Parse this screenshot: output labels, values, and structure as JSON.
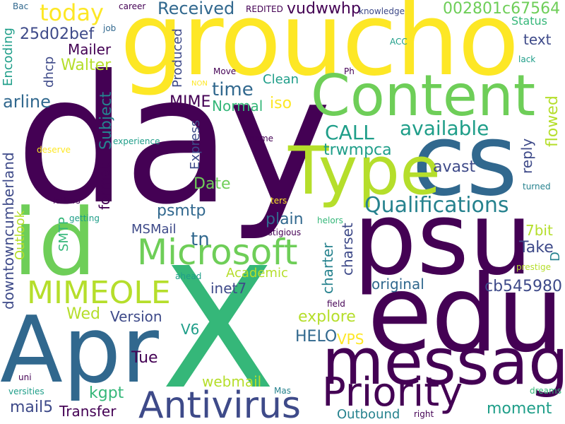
{
  "palette": {
    "background": "#ffffff",
    "dark_purple": "#440154",
    "indigo": "#3e4a89",
    "blue": "#31688e",
    "teal": "#26828e",
    "green_teal": "#1f9e89",
    "green": "#35b779",
    "light_green": "#6ece58",
    "lime": "#b5de2b",
    "yellow": "#fde725"
  },
  "words": [
    {
      "text": "day",
      "color": "#440154"
    },
    {
      "text": "groucho",
      "color": "#fde725"
    },
    {
      "text": "X",
      "color": "#35b779"
    },
    {
      "text": "edu",
      "color": "#440154"
    },
    {
      "text": "psu",
      "color": "#440154"
    },
    {
      "text": "Apr",
      "color": "#31688e"
    },
    {
      "text": "id",
      "color": "#6ece58"
    },
    {
      "text": "cs",
      "color": "#31688e"
    },
    {
      "text": "Content",
      "color": "#6ece58"
    },
    {
      "text": "Type",
      "color": "#b5de2b"
    },
    {
      "text": "message",
      "color": "#440154"
    },
    {
      "text": "Priority",
      "color": "#440154"
    },
    {
      "text": "Antivirus",
      "color": "#3e4a89"
    },
    {
      "text": "Microsoft",
      "color": "#6ece58"
    },
    {
      "text": "MIMEOLE",
      "color": "#b5de2b"
    },
    {
      "text": "Qualifications",
      "color": "#26828e"
    },
    {
      "text": "today",
      "color": "#fde725"
    },
    {
      "text": "Received",
      "color": "#31688e"
    },
    {
      "text": "vudwwhp",
      "color": "#440154"
    },
    {
      "text": "002801c67564",
      "color": "#6ece58"
    },
    {
      "text": "25d02bef",
      "color": "#3e4a89"
    },
    {
      "text": "Mailer",
      "color": "#440154"
    },
    {
      "text": "Walter",
      "color": "#b5de2b"
    },
    {
      "text": "time",
      "color": "#31688e"
    },
    {
      "text": "MIME",
      "color": "#440154"
    },
    {
      "text": "Normal",
      "color": "#35b779"
    },
    {
      "text": "iso",
      "color": "#fde725"
    },
    {
      "text": "CALL",
      "color": "#1f9e89"
    },
    {
      "text": "available",
      "color": "#1f9e89"
    },
    {
      "text": "trwmpca",
      "color": "#1f9e89"
    },
    {
      "text": "text",
      "color": "#3e4a89"
    },
    {
      "text": "avast",
      "color": "#3e4a89"
    },
    {
      "text": "arline",
      "color": "#31688e"
    },
    {
      "text": "Clean",
      "color": "#1f9e89"
    },
    {
      "text": "Date",
      "color": "#6ece58"
    },
    {
      "text": "psmtp",
      "color": "#31688e"
    },
    {
      "text": "plain",
      "color": "#31688e"
    },
    {
      "text": "MSMail",
      "color": "#3e4a89"
    },
    {
      "text": "tn",
      "color": "#31688e"
    },
    {
      "text": "Take",
      "color": "#3e4a89"
    },
    {
      "text": "7bit",
      "color": "#b5de2b"
    },
    {
      "text": "Academic",
      "color": "#b5de2b"
    },
    {
      "text": "inet7",
      "color": "#3e4a89"
    },
    {
      "text": "original",
      "color": "#31688e"
    },
    {
      "text": "cb545980",
      "color": "#3e4a89"
    },
    {
      "text": "Version",
      "color": "#3e4a89"
    },
    {
      "text": "explore",
      "color": "#b5de2b"
    },
    {
      "text": "Wed",
      "color": "#b5de2b"
    },
    {
      "text": "HELO",
      "color": "#31688e"
    },
    {
      "text": "VPS",
      "color": "#fde725"
    },
    {
      "text": "V6",
      "color": "#1f9e89"
    },
    {
      "text": "Tue",
      "color": "#440154"
    },
    {
      "text": "webmail",
      "color": "#b5de2b"
    },
    {
      "text": "kgpt",
      "color": "#35b779"
    },
    {
      "text": "mail5",
      "color": "#3e4a89"
    },
    {
      "text": "Transfer",
      "color": "#440154"
    },
    {
      "text": "Outbound",
      "color": "#26828e"
    },
    {
      "text": "moment",
      "color": "#1f9e89"
    },
    {
      "text": "Bac",
      "color": "#31688e"
    },
    {
      "text": "career",
      "color": "#440154"
    },
    {
      "text": "REDITED",
      "color": "#440154"
    },
    {
      "text": "knowledge",
      "color": "#3e4a89"
    },
    {
      "text": "Status",
      "color": "#35b779"
    },
    {
      "text": "job",
      "color": "#31688e"
    },
    {
      "text": "ACC",
      "color": "#1f9e89"
    },
    {
      "text": "lack",
      "color": "#1f9e89"
    },
    {
      "text": "Move",
      "color": "#440154"
    },
    {
      "text": "Ph",
      "color": "#440154"
    },
    {
      "text": "NON",
      "color": "#fde725"
    },
    {
      "text": "experience",
      "color": "#1f9e89"
    },
    {
      "text": "deserve",
      "color": "#fde725"
    },
    {
      "text": "name",
      "color": "#440154"
    },
    {
      "text": "letters",
      "color": "#440154"
    },
    {
      "text": "getting",
      "color": "#1f9e89"
    },
    {
      "text": "ters",
      "color": "#fde725"
    },
    {
      "text": "helors",
      "color": "#35b779"
    },
    {
      "text": "prestigious",
      "color": "#440154"
    },
    {
      "text": "ahead",
      "color": "#1f9e89"
    },
    {
      "text": "field",
      "color": "#440154"
    },
    {
      "text": "turned",
      "color": "#26828e"
    },
    {
      "text": "prestige",
      "color": "#b5de2b"
    },
    {
      "text": "uni",
      "color": "#440154"
    },
    {
      "text": "versities",
      "color": "#1f9e89"
    },
    {
      "text": "Mas",
      "color": "#26828e"
    },
    {
      "text": "right",
      "color": "#440154"
    },
    {
      "text": "dreams",
      "color": "#35b779"
    },
    {
      "text": "Encoding",
      "color": "#1f9e89"
    },
    {
      "text": "dhcp",
      "color": "#3e4a89"
    },
    {
      "text": "Produced",
      "color": "#3e4a89"
    },
    {
      "text": "Subject",
      "color": "#26828e"
    },
    {
      "text": "Express",
      "color": "#3e4a89"
    },
    {
      "text": "format",
      "color": "#440154"
    },
    {
      "text": "downtowncumberland",
      "color": "#3e4a89"
    },
    {
      "text": "Outlook",
      "color": "#b5de2b"
    },
    {
      "text": "SMTP",
      "color": "#35b779"
    },
    {
      "text": "charter",
      "color": "#26828e"
    },
    {
      "text": "charset",
      "color": "#3e4a89"
    },
    {
      "text": "reply",
      "color": "#3e4a89"
    },
    {
      "text": "flowed",
      "color": "#b5de2b"
    },
    {
      "text": "D",
      "color": "#26828e"
    }
  ]
}
